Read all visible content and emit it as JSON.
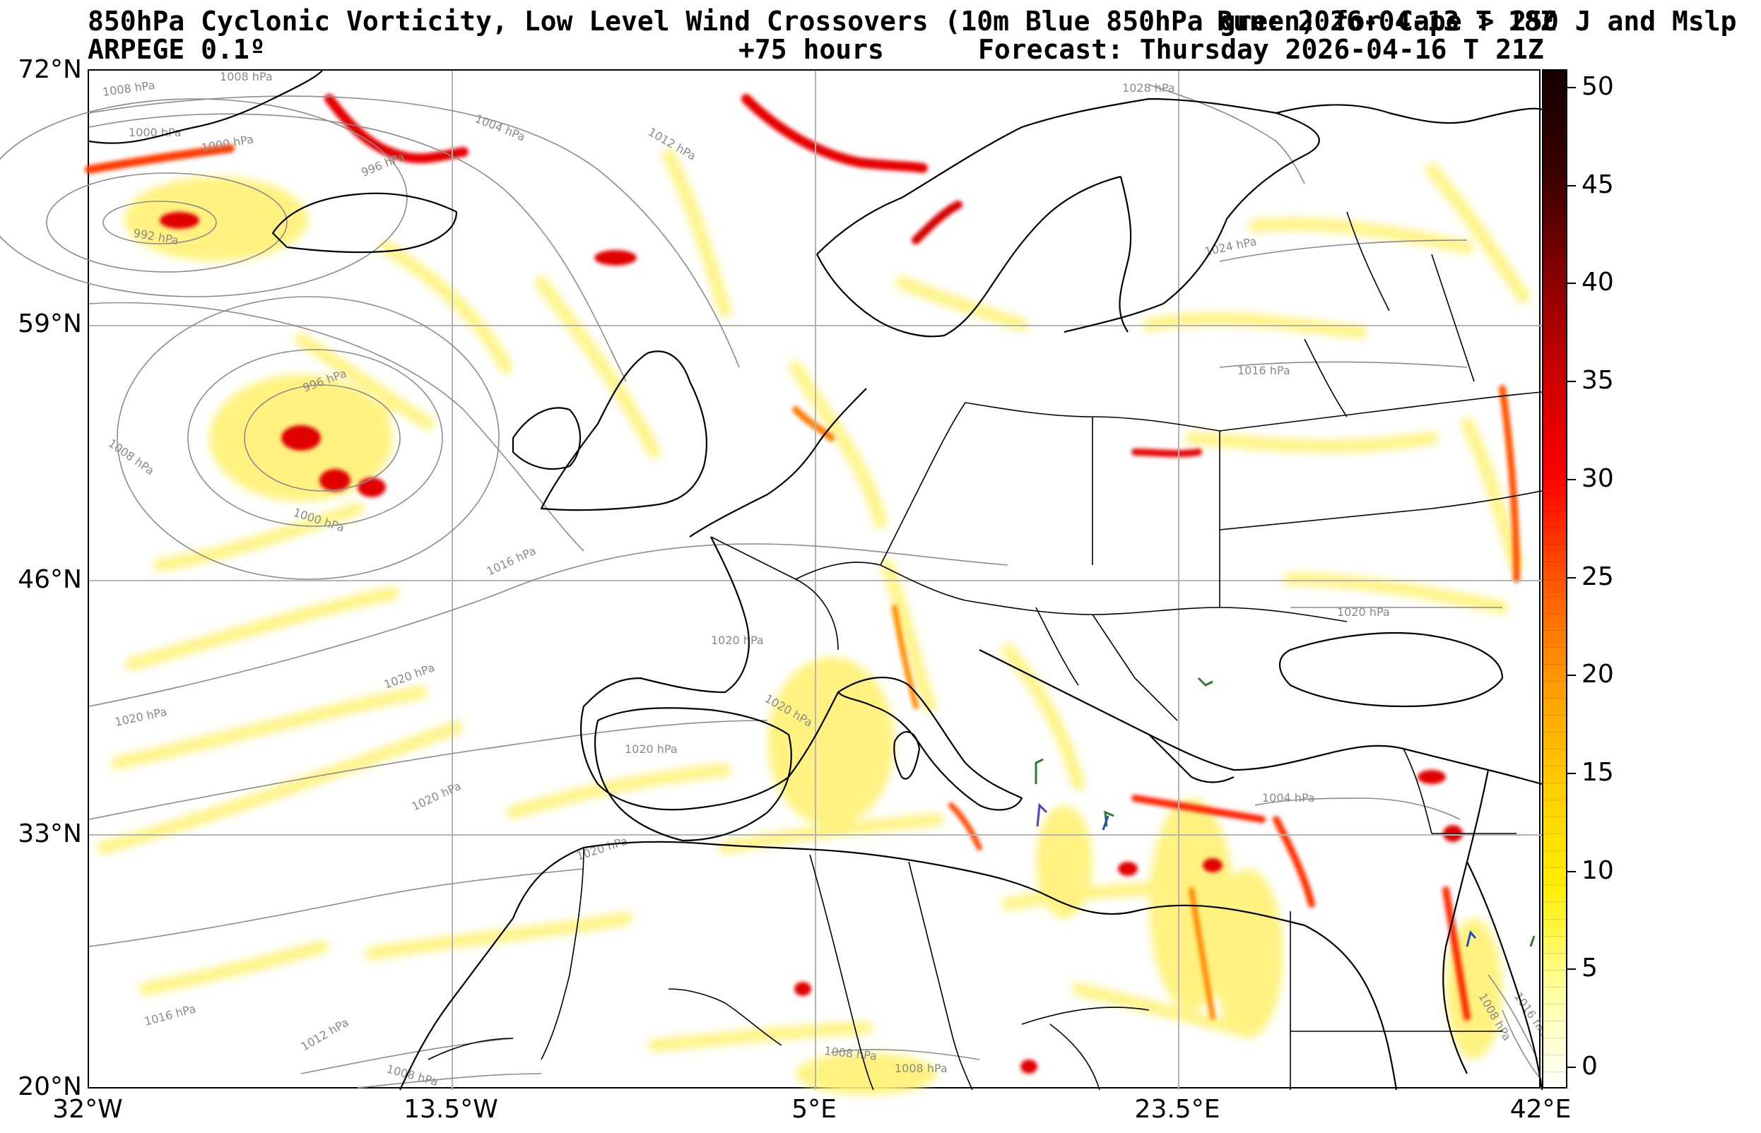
{
  "header": {
    "title_line1": "850hPa Cyclonic Vorticity, Low Level Wind Crossovers (10m Blue 850hPa green) for Cape > 250 J and Mslp",
    "run_label": "Run: 2026-04-13 T 18Z",
    "title_line2_left": "ARPEGE 0.1º",
    "lead_time": "+75 hours",
    "forecast_label": "Forecast: Thursday 2026-04-16 T 21Z"
  },
  "axes": {
    "lat_labels": [
      "72°N",
      "59°N",
      "46°N",
      "33°N",
      "20°N"
    ],
    "lon_labels": [
      "32°W",
      "13.5°W",
      "5°E",
      "23.5°E",
      "42°E"
    ]
  },
  "colorbar": {
    "ticks": [
      "50",
      "45",
      "40",
      "35",
      "30",
      "25",
      "20",
      "15",
      "10",
      "5",
      "0"
    ],
    "colors": [
      "#ffffff",
      "#ffff99",
      "#ffee00",
      "#ffcc00",
      "#ff9900",
      "#ff5500",
      "#ff0000",
      "#cc0000",
      "#880000",
      "#3a0000",
      "#150000"
    ]
  },
  "isobar_labels": [
    "1008 hPa",
    "1008 hPa",
    "1000 hPa",
    "1000 hPa",
    "992 hPa",
    "996 hPa",
    "1004 hPa",
    "1012 hPa",
    "1028 hPa",
    "1024 hPa",
    "996 hPa",
    "1008 hPa",
    "1000 hPa",
    "1016 hPa",
    "1016 hPa",
    "1020 hPa",
    "1020 hPa",
    "1020 hPa",
    "1020 hPa",
    "1020 hPa",
    "1020 hPa",
    "1020 hPa",
    "1020 hPa",
    "1004 hPa",
    "1016 hPa",
    "1012 hPa",
    "1008 hPa",
    "1008 hPa",
    "1008 hPa",
    "1008 hPa",
    "1016 hPa"
  ]
}
